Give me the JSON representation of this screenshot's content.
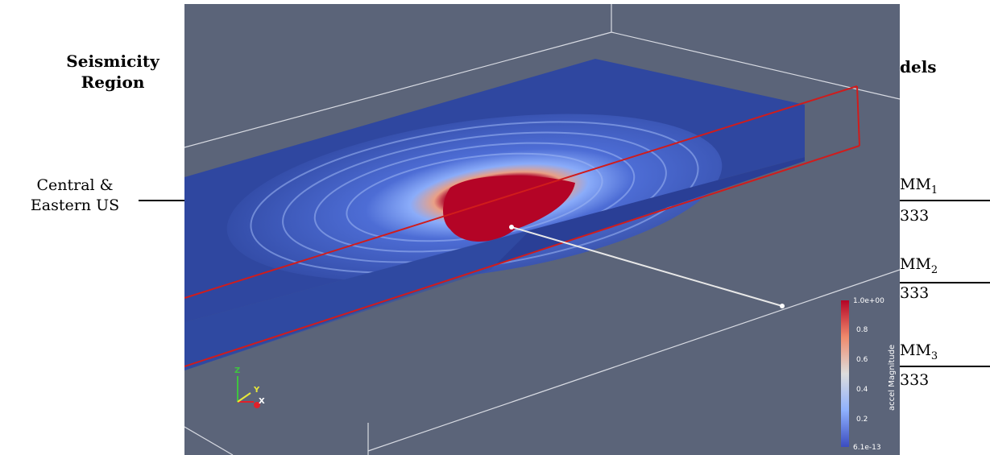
{
  "left_panel": {
    "heading_line1": "Seismicity",
    "heading_line2": "Region",
    "region_line1": "Central &",
    "region_line2": "Eastern US"
  },
  "right_panel": {
    "heading_partial": "dels",
    "items": [
      {
        "name": "MM",
        "sub": "1",
        "value": "333"
      },
      {
        "name": "MM",
        "sub": "2",
        "value": "333"
      },
      {
        "name": "MM",
        "sub": "3",
        "value": "333"
      }
    ]
  },
  "colorbar": {
    "title": "accel Magnitude",
    "max_label": "1.0e+00",
    "min_label": "6.1e-13",
    "ticks": [
      "0.8",
      "0.6",
      "0.4",
      "0.2"
    ],
    "colors": {
      "high": "#b40426",
      "mid": "#dddddd",
      "low": "#3b4cc0"
    }
  },
  "orientation_axes": {
    "z": "Z",
    "y": "Y",
    "x": "X"
  },
  "colors": {
    "viewport_bg": "#5b6479",
    "slab_blue": "#2f47a0",
    "wave_red": "#b40426",
    "clip_box": "#d01c1c"
  }
}
